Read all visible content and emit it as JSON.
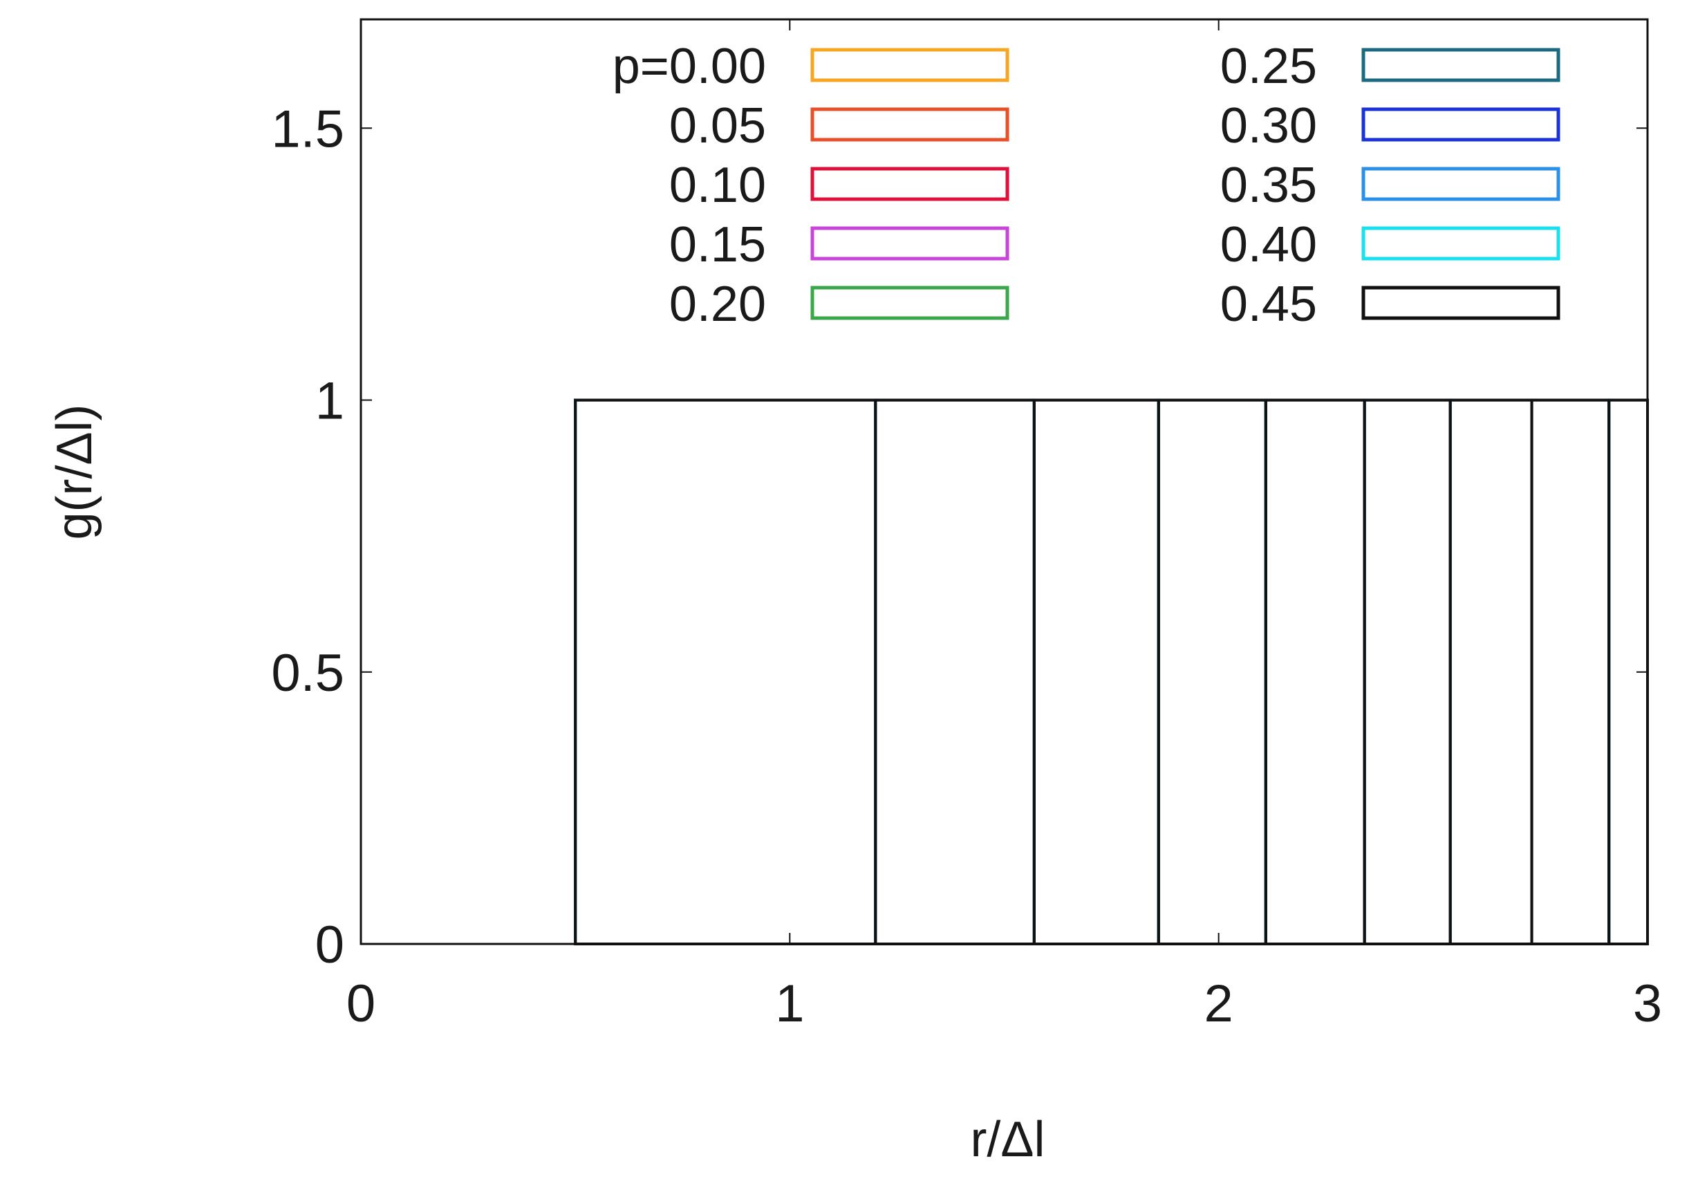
{
  "chart_data": {
    "type": "bar",
    "xlabel": "r/Δl",
    "ylabel": "g(r/Δl)",
    "xlim": [
      0,
      3
    ],
    "ylim": [
      0,
      1.7
    ],
    "xticks": [
      {
        "value": 0,
        "label": "0"
      },
      {
        "value": 1,
        "label": "1"
      },
      {
        "value": 2,
        "label": "2"
      },
      {
        "value": 3,
        "label": "3"
      }
    ],
    "yticks": [
      {
        "value": 0,
        "label": "0"
      },
      {
        "value": 0.5,
        "label": "0.5"
      },
      {
        "value": 1,
        "label": "1"
      },
      {
        "value": 1.5,
        "label": "1.5"
      }
    ],
    "grid": false,
    "legend_position": "top, two columns",
    "bin_edges": [
      0.5,
      1.2,
      1.57,
      1.86,
      2.11,
      2.34,
      2.54,
      2.73,
      2.91,
      3.0
    ],
    "series": [
      {
        "name": "p=0.00",
        "color": "#f5a623",
        "values": [
          1,
          1,
          1,
          1,
          1,
          1,
          1,
          1,
          1
        ]
      },
      {
        "name": "0.05",
        "color": "#e8502a",
        "values": [
          1,
          1,
          1,
          1,
          1,
          1,
          1,
          1,
          1
        ]
      },
      {
        "name": "0.10",
        "color": "#e0103a",
        "values": [
          1,
          1,
          1,
          1,
          1,
          1,
          1,
          1,
          1
        ]
      },
      {
        "name": "0.15",
        "color": "#c944d8",
        "values": [
          1,
          1,
          1,
          1,
          1,
          1,
          1,
          1,
          1
        ]
      },
      {
        "name": "0.20",
        "color": "#3aa84a",
        "values": [
          1,
          1,
          1,
          1,
          1,
          1,
          1,
          1,
          1
        ]
      },
      {
        "name": "0.25",
        "color": "#1a6b80",
        "values": [
          1,
          1,
          1,
          1,
          1,
          1,
          1,
          1,
          1
        ]
      },
      {
        "name": "0.30",
        "color": "#1a32d8",
        "values": [
          1,
          1,
          1,
          1,
          1,
          1,
          1,
          1,
          1
        ]
      },
      {
        "name": "0.35",
        "color": "#2a90e8",
        "values": [
          1,
          1,
          1,
          1,
          1,
          1,
          1,
          1,
          1
        ]
      },
      {
        "name": "0.40",
        "color": "#18e0ec",
        "values": [
          1,
          1,
          1,
          1,
          1,
          1,
          1,
          1,
          1
        ]
      },
      {
        "name": "0.45",
        "color": "#111111",
        "values": [
          1,
          1,
          1,
          1,
          1,
          1,
          1,
          1,
          1
        ]
      }
    ]
  }
}
